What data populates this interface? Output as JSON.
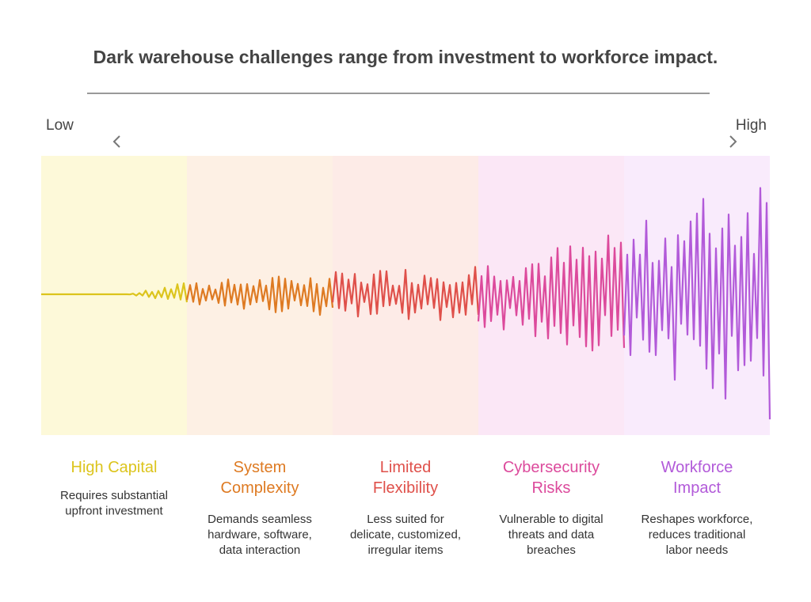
{
  "title": "Dark warehouse challenges range from investment to workforce impact.",
  "scale": {
    "low": "Low",
    "high": "High"
  },
  "sections": [
    {
      "title": [
        "High Capital"
      ],
      "description": [
        "Requires substantial",
        "upfront investment"
      ]
    },
    {
      "title": [
        "System",
        "Complexity"
      ],
      "description": [
        "Demands seamless",
        "hardware, software,",
        "data interaction"
      ]
    },
    {
      "title": [
        "Limited",
        "Flexibility"
      ],
      "description": [
        "Less suited for",
        "delicate, customized,",
        "irregular items"
      ]
    },
    {
      "title": [
        "Cybersecurity",
        "Risks"
      ],
      "description": [
        "Vulnerable to digital",
        "threats and data",
        "breaches"
      ]
    },
    {
      "title": [
        "Workforce",
        "Impact"
      ],
      "description": [
        "Reshapes workforce,",
        "reduces traditional",
        "labor needs"
      ]
    }
  ]
}
